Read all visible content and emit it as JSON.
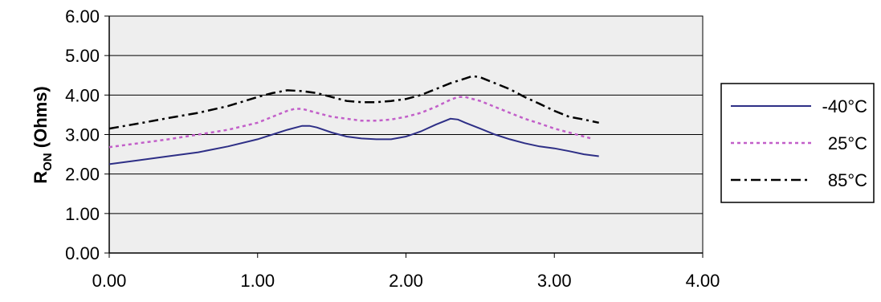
{
  "chart_data": {
    "type": "line",
    "xlim": [
      0,
      4
    ],
    "ylim": [
      0,
      6
    ],
    "x_ticks": [
      "0.00",
      "1.00",
      "2.00",
      "3.00",
      "4.00"
    ],
    "y_ticks": [
      "0.00",
      "1.00",
      "2.00",
      "3.00",
      "4.00",
      "5.00",
      "6.00"
    ],
    "xlabel": "",
    "ylabel_main": "R",
    "ylabel_sub": "ON",
    "ylabel_rest": " (Ohms)",
    "grid": "horizontal",
    "legend_position": "right",
    "plot_background": "#eeeeee",
    "series": [
      {
        "name": "-40°C",
        "color": "#2e2f86",
        "dash": "solid",
        "x": [
          0,
          0.2,
          0.4,
          0.6,
          0.8,
          1.0,
          1.1,
          1.2,
          1.3,
          1.35,
          1.4,
          1.5,
          1.6,
          1.7,
          1.8,
          1.9,
          2.0,
          2.1,
          2.2,
          2.3,
          2.35,
          2.4,
          2.5,
          2.6,
          2.7,
          2.8,
          2.9,
          3.0,
          3.1,
          3.2,
          3.3
        ],
        "y": [
          2.25,
          2.35,
          2.45,
          2.55,
          2.7,
          2.88,
          3.0,
          3.12,
          3.22,
          3.22,
          3.18,
          3.05,
          2.95,
          2.9,
          2.88,
          2.88,
          2.95,
          3.08,
          3.25,
          3.4,
          3.38,
          3.3,
          3.15,
          3.0,
          2.88,
          2.78,
          2.7,
          2.65,
          2.58,
          2.5,
          2.45
        ]
      },
      {
        "name": "25°C",
        "color": "#c25fc9",
        "dash": "dotted",
        "x": [
          0,
          0.2,
          0.4,
          0.6,
          0.8,
          1.0,
          1.1,
          1.2,
          1.25,
          1.3,
          1.4,
          1.5,
          1.6,
          1.7,
          1.8,
          1.9,
          2.0,
          2.1,
          2.2,
          2.3,
          2.35,
          2.4,
          2.5,
          2.6,
          2.7,
          2.8,
          2.9,
          3.0,
          3.1,
          3.2,
          3.25
        ],
        "y": [
          2.68,
          2.78,
          2.88,
          3.0,
          3.12,
          3.3,
          3.45,
          3.6,
          3.65,
          3.65,
          3.55,
          3.45,
          3.4,
          3.35,
          3.35,
          3.38,
          3.45,
          3.55,
          3.7,
          3.88,
          3.95,
          3.95,
          3.85,
          3.7,
          3.55,
          3.4,
          3.28,
          3.15,
          3.05,
          2.95,
          2.9
        ]
      },
      {
        "name": "85°C",
        "color": "#000000",
        "dash": "dashdot",
        "x": [
          0,
          0.2,
          0.4,
          0.6,
          0.8,
          1.0,
          1.1,
          1.2,
          1.3,
          1.4,
          1.5,
          1.6,
          1.7,
          1.8,
          1.9,
          2.0,
          2.1,
          2.2,
          2.3,
          2.4,
          2.45,
          2.5,
          2.6,
          2.7,
          2.8,
          2.9,
          3.0,
          3.1,
          3.2,
          3.3
        ],
        "y": [
          3.15,
          3.28,
          3.42,
          3.55,
          3.72,
          3.95,
          4.05,
          4.12,
          4.1,
          4.05,
          3.95,
          3.85,
          3.82,
          3.82,
          3.85,
          3.9,
          4.0,
          4.15,
          4.3,
          4.42,
          4.48,
          4.45,
          4.3,
          4.15,
          3.95,
          3.78,
          3.6,
          3.45,
          3.38,
          3.3
        ]
      }
    ]
  }
}
